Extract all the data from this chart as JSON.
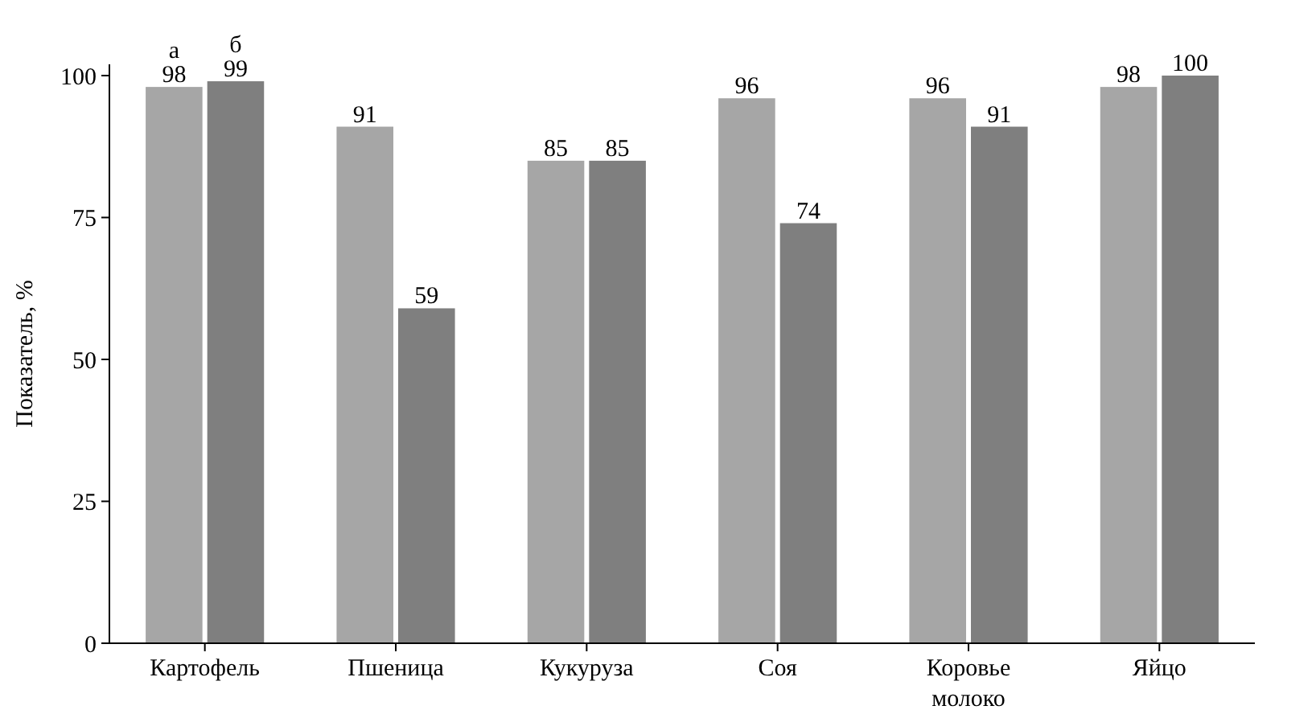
{
  "chart_data": {
    "type": "bar",
    "ylabel": "Показатель, %",
    "categories": [
      "Картофель",
      "Пшеница",
      "Кукуруза",
      "Соя",
      "Коровье молоко",
      "Яйцо"
    ],
    "series": [
      {
        "name": "а",
        "color": "#a6a6a6",
        "values": [
          98,
          91,
          85,
          96,
          96,
          98
        ]
      },
      {
        "name": "б",
        "color": "#7f7f7f",
        "values": [
          99,
          59,
          85,
          74,
          91,
          100
        ]
      }
    ],
    "ylim": [
      0,
      100
    ],
    "yticks": [
      0,
      25,
      50,
      75,
      100
    ],
    "data_labels": true,
    "grid": false
  }
}
